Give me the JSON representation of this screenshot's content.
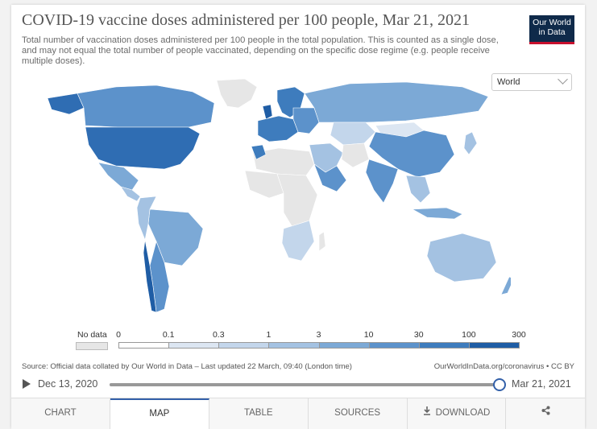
{
  "header": {
    "title": "COVID-19 vaccine doses administered per 100 people, Mar 21, 2021",
    "subtitle": "Total number of vaccination doses administered per 100 people in the total population. This is counted as a single dose, and may not equal the total number of people vaccinated, depending on the specific dose regime (e.g. people receive multiple doses).",
    "logo_line1": "Our World",
    "logo_line2": "in Data"
  },
  "region_select": {
    "value": "World"
  },
  "legend": {
    "nodata_label": "No data",
    "nodata_color": "#e6e6e6",
    "ticks": [
      "0",
      "0.1",
      "0.3",
      "1",
      "3",
      "10",
      "30",
      "100",
      "300"
    ],
    "bin_colors": [
      "#ffffff",
      "#dce6f2",
      "#c3d6eb",
      "#a4c2e2",
      "#7ca9d6",
      "#5c92cb",
      "#3e7cbd",
      "#1f5da5"
    ]
  },
  "footer": {
    "source": "Source: Official data collated by Our World in Data – Last updated 22 March, 09:40 (London time)",
    "credit": "OurWorldInData.org/coronavirus • CC BY"
  },
  "timeline": {
    "start": "Dec 13, 2020",
    "end": "Mar 21, 2021",
    "progress": 1.0
  },
  "tabs": [
    {
      "label": "CHART",
      "active": false
    },
    {
      "label": "MAP",
      "active": true
    },
    {
      "label": "TABLE",
      "active": false
    },
    {
      "label": "SOURCES",
      "active": false
    },
    {
      "label": "DOWNLOAD",
      "active": false
    },
    {
      "label": "",
      "active": false
    }
  ],
  "icons": {
    "download": "download-icon",
    "share": "share-icon",
    "play": "play-icon"
  }
}
